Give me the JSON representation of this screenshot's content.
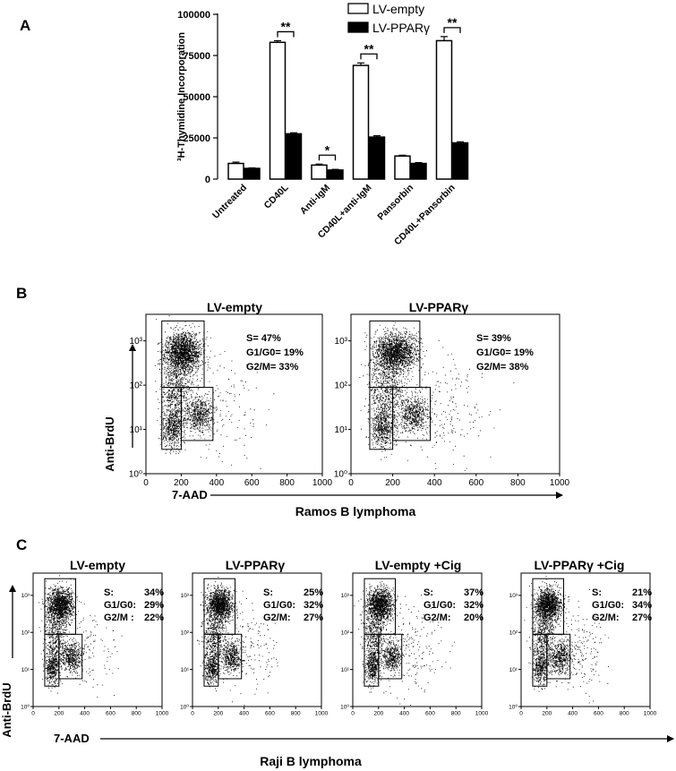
{
  "panel_labels": {
    "a": "A",
    "b": "B",
    "c": "C"
  },
  "chart_data": {
    "type": "bar",
    "ylabel": "³H-Thymidine Incorporation",
    "ylim": [
      0,
      100000
    ],
    "yticks": [
      "0",
      "25000",
      "50000",
      "75000",
      "100000"
    ],
    "categories": [
      "Untreated",
      "CD40L",
      "Anti-IgM",
      "CD40L+anti-IgM",
      "Pansorbin",
      "CD40L+Pansorbin"
    ],
    "series": [
      {
        "name": "LV-empty",
        "color": "#ffffff",
        "values": [
          9500,
          83000,
          8500,
          69000,
          14000,
          84000
        ],
        "errors": [
          800,
          1000,
          600,
          1500,
          500,
          2500
        ]
      },
      {
        "name": "LV-PPARγ",
        "color": "#000000",
        "values": [
          6500,
          27500,
          5500,
          25500,
          9500,
          22000
        ],
        "errors": [
          300,
          600,
          400,
          800,
          500,
          600
        ]
      }
    ],
    "significance": [
      {
        "category": 1,
        "label": "**"
      },
      {
        "category": 2,
        "label": "*"
      },
      {
        "category": 3,
        "label": "**"
      },
      {
        "category": 5,
        "label": "**"
      }
    ]
  },
  "panel_b": {
    "x_label": "7-AAD",
    "y_label": "Anti-BrdU",
    "caption": "Ramos B lymphoma",
    "x_ticks": [
      "0",
      "200",
      "400",
      "600",
      "800",
      "1000"
    ],
    "y_ticks": [
      "10⁰",
      "10¹",
      "10²",
      "10³"
    ],
    "plots": [
      {
        "title": "LV-empty",
        "stats": [
          "S= 47%",
          "G1/G0= 19%",
          "G2/M= 33%"
        ]
      },
      {
        "title": "LV-PPARγ",
        "stats": [
          "S= 39%",
          "G1/G0= 19%",
          "G2/M= 38%"
        ]
      }
    ]
  },
  "panel_c": {
    "x_label": "7-AAD",
    "y_label": "Anti-BrdU",
    "caption": "Raji B lymphoma",
    "x_ticks": [
      "0",
      "200",
      "400",
      "600",
      "800",
      "1000"
    ],
    "y_ticks": [
      "10⁰",
      "10¹",
      "10²",
      "10³"
    ],
    "plots": [
      {
        "title": "LV-empty",
        "stats": [
          [
            "S:",
            "34%"
          ],
          [
            "G1/G0:",
            "29%"
          ],
          [
            "G2/M :",
            "22%"
          ]
        ]
      },
      {
        "title": "LV-PPARγ",
        "stats": [
          [
            "S:",
            "25%"
          ],
          [
            "G1/G0:",
            "32%"
          ],
          [
            "G2/M:",
            "27%"
          ]
        ]
      },
      {
        "title": "LV-empty +Cig",
        "stats": [
          [
            "S:",
            "37%"
          ],
          [
            "G1/G0:",
            "32%"
          ],
          [
            "G2/M:",
            "20%"
          ]
        ]
      },
      {
        "title": "LV-PPARγ +Cig",
        "stats": [
          [
            "S:",
            "21%"
          ],
          [
            "G1/G0:",
            "34%"
          ],
          [
            "G2/M:",
            "27%"
          ]
        ]
      }
    ]
  }
}
